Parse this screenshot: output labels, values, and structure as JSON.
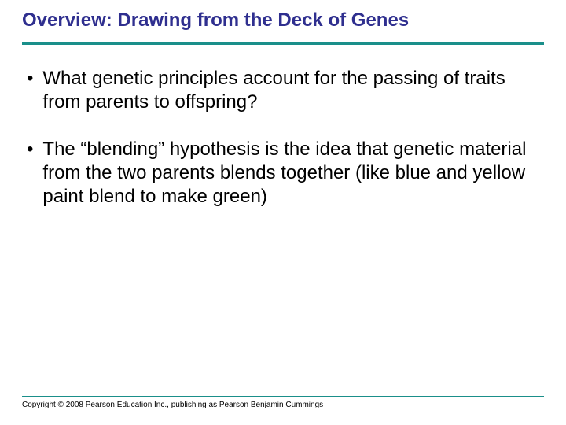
{
  "title": "Overview: Drawing from the Deck of Genes",
  "title_color": "#2f2f8f",
  "rule_color": "#1a8f8a",
  "bullets": [
    "What genetic principles account for the passing of traits from parents to offspring?",
    "The “blending” hypothesis is the idea that genetic material from the two parents blends together (like blue and yellow paint blend to make green)"
  ],
  "copyright": "Copyright © 2008 Pearson Education Inc., publishing as Pearson Benjamin Cummings",
  "body_fontsize": 24,
  "title_fontsize": 24,
  "copyright_fontsize": 10,
  "background_color": "#ffffff",
  "text_color": "#000000"
}
